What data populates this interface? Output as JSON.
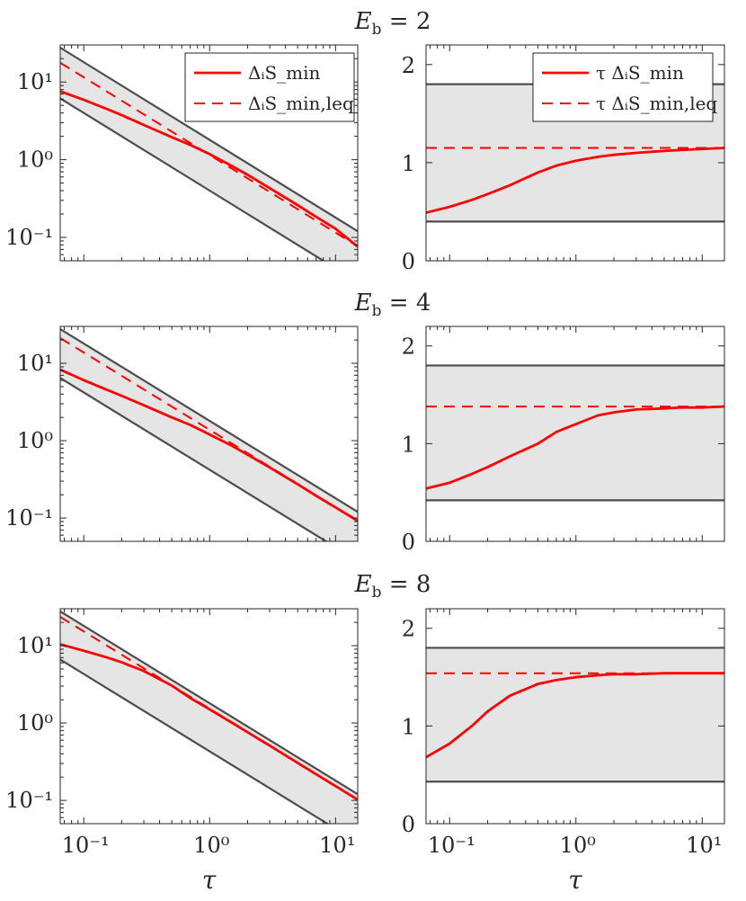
{
  "colors": {
    "band_fill": "#e5e5e5",
    "bound_line": "#4d4d4d",
    "series": "#ff0000",
    "axis": "#262626"
  },
  "legend_left": [
    "ΔᵢS_min",
    "ΔᵢS_min,leq"
  ],
  "legend_right": [
    "τ ΔᵢS_min",
    "τ ΔᵢS_min,leq"
  ],
  "xlabel": "τ",
  "xticks": [
    "10⁻¹",
    "10⁰",
    "10¹"
  ],
  "chart_data": [
    {
      "row_title": "E_b = 2",
      "left": {
        "type": "line",
        "xscale": "log",
        "yscale": "log",
        "xlim": [
          0.065,
          15
        ],
        "ylim": [
          0.05,
          30
        ],
        "ytick_labels": [
          "10¹",
          "10⁰",
          "10⁻¹"
        ],
        "bounds": {
          "upper_coeff": 1.8,
          "lower_coeff": 0.4
        },
        "series": [
          {
            "name": "ΔᵢS_min",
            "style": "solid",
            "x": [
              0.065,
              0.1,
              0.15,
              0.2,
              0.3,
              0.5,
              0.7,
              1,
              1.5,
              2,
              3,
              5,
              7,
              10,
              15
            ],
            "y": [
              7.6,
              5.9,
              4.55,
              3.75,
              2.8,
              1.95,
              1.55,
              1.18,
              0.83,
              0.64,
              0.43,
              0.26,
              0.184,
              0.129,
              0.076
            ]
          },
          {
            "name": "ΔᵢS_min,leq",
            "style": "dashed",
            "x": [
              0.065,
              15
            ],
            "y": [
              17.7,
              0.0767
            ]
          }
        ]
      },
      "right": {
        "type": "line",
        "xscale": "log",
        "yscale": "linear",
        "xlim": [
          0.065,
          15
        ],
        "ylim": [
          0,
          2.2
        ],
        "ytick_labels": [
          "2",
          "1",
          "0"
        ],
        "band": [
          0.4,
          1.8
        ],
        "series": [
          {
            "name": "τ ΔᵢS_min",
            "style": "solid",
            "x": [
              0.065,
              0.1,
              0.15,
              0.2,
              0.3,
              0.5,
              0.7,
              1,
              1.5,
              2,
              3,
              5,
              7,
              10,
              15
            ],
            "y": [
              0.49,
              0.55,
              0.62,
              0.68,
              0.77,
              0.9,
              0.97,
              1.02,
              1.06,
              1.08,
              1.1,
              1.12,
              1.13,
              1.14,
              1.15
            ]
          },
          {
            "name": "τ ΔᵢS_min,leq",
            "style": "dashed",
            "x": [
              0.065,
              15
            ],
            "y": [
              1.15,
              1.15
            ]
          }
        ]
      }
    },
    {
      "row_title": "E_b = 4",
      "left": {
        "type": "line",
        "xscale": "log",
        "yscale": "log",
        "xlim": [
          0.065,
          15
        ],
        "ylim": [
          0.05,
          30
        ],
        "ytick_labels": [
          "10¹",
          "10⁰",
          "10⁻¹"
        ],
        "bounds": {
          "upper_coeff": 1.8,
          "lower_coeff": 0.42
        },
        "series": [
          {
            "name": "ΔᵢS_min",
            "style": "solid",
            "x": [
              0.065,
              0.1,
              0.15,
              0.2,
              0.3,
              0.5,
              0.7,
              1,
              1.5,
              2,
              3,
              5,
              7,
              10,
              15
            ],
            "y": [
              8.3,
              6.05,
              4.6,
              3.8,
              2.87,
              2.0,
              1.6,
              1.2,
              0.86,
              0.66,
              0.45,
              0.273,
              0.194,
              0.137,
              0.092
            ]
          },
          {
            "name": "ΔᵢS_min,leq",
            "style": "dashed",
            "x": [
              0.065,
              15
            ],
            "y": [
              21.2,
              0.092
            ]
          }
        ]
      },
      "right": {
        "type": "line",
        "xscale": "log",
        "yscale": "linear",
        "xlim": [
          0.065,
          15
        ],
        "ylim": [
          0,
          2.2
        ],
        "ytick_labels": [
          "2",
          "1",
          "0"
        ],
        "band": [
          0.42,
          1.8
        ],
        "series": [
          {
            "name": "τ ΔᵢS_min",
            "style": "solid",
            "x": [
              0.065,
              0.1,
              0.15,
              0.2,
              0.3,
              0.5,
              0.7,
              1,
              1.5,
              2,
              3,
              5,
              7,
              10,
              15
            ],
            "y": [
              0.54,
              0.6,
              0.69,
              0.76,
              0.87,
              1.0,
              1.12,
              1.2,
              1.29,
              1.32,
              1.35,
              1.36,
              1.37,
              1.37,
              1.38
            ]
          },
          {
            "name": "τ ΔᵢS_min,leq",
            "style": "dashed",
            "x": [
              0.065,
              15
            ],
            "y": [
              1.38,
              1.38
            ]
          }
        ]
      }
    },
    {
      "row_title": "E_b = 8",
      "left": {
        "type": "line",
        "xscale": "log",
        "yscale": "log",
        "xlim": [
          0.065,
          15
        ],
        "ylim": [
          0.05,
          30
        ],
        "ytick_labels": [
          "10¹",
          "10⁰",
          "10⁻¹"
        ],
        "bounds": {
          "upper_coeff": 1.8,
          "lower_coeff": 0.43
        },
        "series": [
          {
            "name": "ΔᵢS_min",
            "style": "solid",
            "x": [
              0.065,
              0.1,
              0.15,
              0.2,
              0.3,
              0.5,
              0.7,
              1,
              1.5,
              2,
              3,
              5,
              7,
              10,
              15
            ],
            "y": [
              10.4,
              8.6,
              7.1,
              6.1,
              4.7,
              3.05,
              2.11,
              1.5,
              1.01,
              0.76,
              0.51,
              0.305,
              0.218,
              0.153,
              0.102
            ]
          },
          {
            "name": "ΔᵢS_min,leq",
            "style": "dashed",
            "x": [
              0.065,
              15
            ],
            "y": [
              23.5,
              0.102
            ]
          }
        ]
      },
      "right": {
        "type": "line",
        "xscale": "log",
        "yscale": "linear",
        "xlim": [
          0.065,
          15
        ],
        "ylim": [
          0,
          2.2
        ],
        "ytick_labels": [
          "2",
          "1",
          "0"
        ],
        "band": [
          0.43,
          1.8
        ],
        "series": [
          {
            "name": "τ ΔᵢS_min",
            "style": "solid",
            "x": [
              0.065,
              0.1,
              0.15,
              0.2,
              0.3,
              0.5,
              0.7,
              1,
              1.5,
              2,
              3,
              5,
              7,
              10,
              15
            ],
            "y": [
              0.68,
              0.82,
              1.0,
              1.15,
              1.31,
              1.43,
              1.47,
              1.5,
              1.52,
              1.53,
              1.53,
              1.54,
              1.54,
              1.54,
              1.54
            ]
          },
          {
            "name": "τ ΔᵢS_min,leq",
            "style": "dashed",
            "x": [
              0.065,
              15
            ],
            "y": [
              1.54,
              1.54
            ]
          }
        ]
      }
    }
  ]
}
